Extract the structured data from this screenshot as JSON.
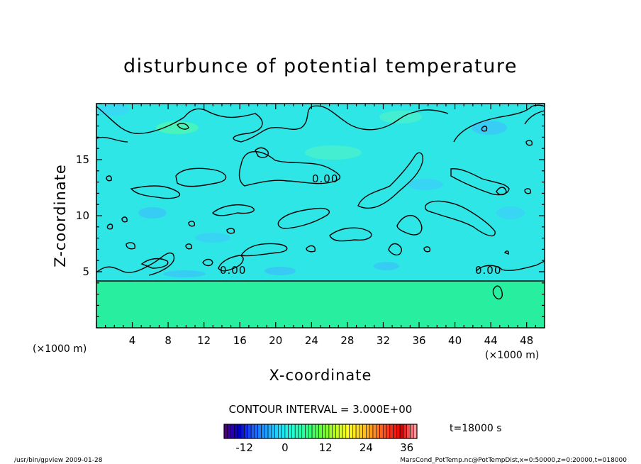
{
  "chart_data": {
    "type": "heatmap",
    "title": "disturbunce of potential temperature",
    "xlabel": "X-coordinate",
    "ylabel": "Z-coordinate",
    "x_unit_left": "(×1000 m)",
    "x_unit_right": "(×1000 m)",
    "xlim": [
      0,
      50
    ],
    "ylim": [
      0,
      20
    ],
    "x_ticks": [
      4,
      8,
      12,
      16,
      20,
      24,
      28,
      32,
      36,
      40,
      44,
      48
    ],
    "y_ticks": [
      5,
      10,
      15
    ],
    "contour_interval_text": "CONTOUR INTERVAL = 3.000E+00",
    "contour_label": "0.00",
    "time_text": "t=18000 s",
    "colorbar": {
      "min": -18,
      "max": 39,
      "ticks": [
        -12,
        0,
        12,
        24,
        36
      ]
    },
    "zero_contour_height": 4.2,
    "fields": {
      "lower_layer_color": "#28eea0",
      "upper_layer_color": "#2fe6e6"
    }
  },
  "footer": {
    "left": "/usr/bin/gpview   2009-01-28",
    "right": "MarsCond_PotTemp.nc@PotTempDist,x=0:50000,z=0:20000,t=018000"
  }
}
